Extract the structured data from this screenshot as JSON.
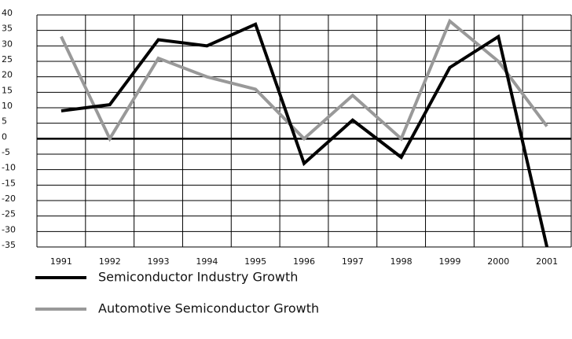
{
  "chart_data": {
    "type": "line",
    "categories": [
      "1991",
      "1992",
      "1993",
      "1994",
      "1995",
      "1996",
      "1997",
      "1998",
      "1999",
      "2000",
      "2001"
    ],
    "series": [
      {
        "name": "Semiconductor Industry Growth",
        "color": "#000000",
        "values": [
          9,
          11,
          32,
          30,
          37,
          -8,
          6,
          -6,
          23,
          33,
          -35
        ]
      },
      {
        "name": "Automotive Semiconductor Growth",
        "color": "#999999",
        "values": [
          33,
          0,
          26,
          20,
          16,
          0,
          14,
          0,
          38,
          25,
          4
        ]
      }
    ],
    "ylim": [
      -35,
      40
    ],
    "yticks": [
      -35,
      -30,
      -25,
      -20,
      -15,
      -10,
      -5,
      0,
      5,
      10,
      15,
      20,
      25,
      30,
      35,
      40
    ],
    "grid": true
  }
}
